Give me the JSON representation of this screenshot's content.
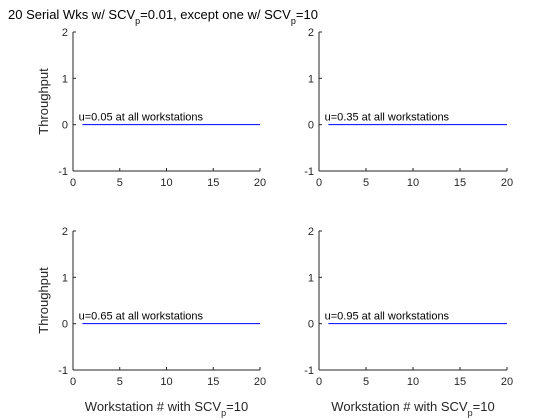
{
  "figure": {
    "title_main": "20 Serial Wks w/ SCV",
    "title_sub": "p",
    "title_rest": "=0.01, except one w/ SCV",
    "title_sub2": "p",
    "title_end": "=10"
  },
  "chart_data": [
    {
      "type": "line",
      "xlim": [
        0,
        20
      ],
      "ylim": [
        -1,
        2
      ],
      "xticks": [
        "0",
        "5",
        "10",
        "15",
        "20"
      ],
      "yticks": [
        "-1",
        "0",
        "1",
        "2"
      ],
      "ylabel": "Throughput",
      "xlabel": "",
      "annotation": "u=0.05 at all workstations",
      "series": [
        {
          "color": "#0000ff",
          "x": [
            1,
            20
          ],
          "y": [
            0,
            0
          ]
        }
      ]
    },
    {
      "type": "line",
      "xlim": [
        0,
        20
      ],
      "ylim": [
        -1,
        2
      ],
      "xticks": [
        "0",
        "5",
        "10",
        "15",
        "20"
      ],
      "yticks": [
        "-1",
        "0",
        "1",
        "2"
      ],
      "ylabel": "",
      "xlabel": "",
      "annotation": "u=0.35 at all workstations",
      "series": [
        {
          "color": "#0000ff",
          "x": [
            1,
            20
          ],
          "y": [
            0,
            0
          ]
        }
      ]
    },
    {
      "type": "line",
      "xlim": [
        0,
        20
      ],
      "ylim": [
        -1,
        2
      ],
      "xticks": [
        "0",
        "5",
        "10",
        "15",
        "20"
      ],
      "yticks": [
        "-1",
        "0",
        "1",
        "2"
      ],
      "ylabel": "Throughput",
      "xlabel": {
        "main": "Workstation # with SCV",
        "sub": "p",
        "rest": "=10"
      },
      "annotation": "u=0.65 at all workstations",
      "series": [
        {
          "color": "#0000ff",
          "x": [
            1,
            20
          ],
          "y": [
            0,
            0
          ]
        }
      ]
    },
    {
      "type": "line",
      "xlim": [
        0,
        20
      ],
      "ylim": [
        -1,
        2
      ],
      "xticks": [
        "0",
        "5",
        "10",
        "15",
        "20"
      ],
      "yticks": [
        "-1",
        "0",
        "1",
        "2"
      ],
      "ylabel": "",
      "xlabel": {
        "main": "Workstation # with SCV",
        "sub": "p",
        "rest": "=10"
      },
      "annotation": "u=0.95 at all workstations",
      "series": [
        {
          "color": "#0000ff",
          "x": [
            1,
            20
          ],
          "y": [
            0,
            0
          ]
        }
      ]
    }
  ]
}
